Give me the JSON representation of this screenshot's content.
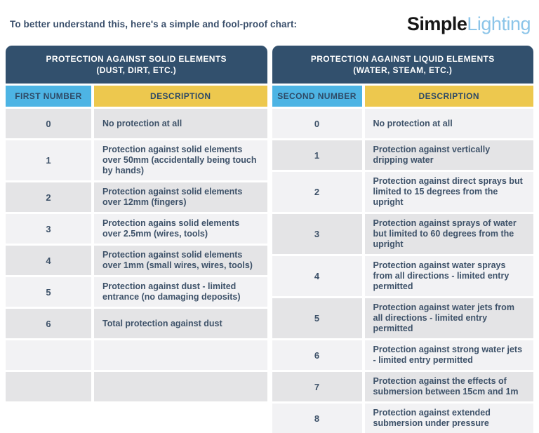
{
  "topbar": {
    "intro_text": "To better understand this, here's a simple and fool-proof chart:",
    "logo": {
      "part1": "Simple",
      "part2": "Lighting"
    }
  },
  "colors": {
    "header_navy": "#32506d",
    "number_column_blue": "#4db4e4",
    "description_column_yellow": "#edc84e",
    "row_gray_dark": "#e4e4e6",
    "row_gray_light": "#f2f2f4",
    "text_navy": "#3e5269",
    "logo_black": "#161616",
    "logo_blue": "#8cc5e9"
  },
  "chart_data": [
    {
      "type": "table",
      "title": "PROTECTION AGAINST SOLID ELEMENTS",
      "subtitle": "(DUST, DIRT, ETC.)",
      "columns": [
        "FIRST NUMBER",
        "DESCRIPTION"
      ],
      "rows": [
        [
          "0",
          "No protection at all"
        ],
        [
          "1",
          "Protection against solid elements over 50mm (accidentally being touch by hands)"
        ],
        [
          "2",
          "Protection against solid elements over 12mm (fingers)"
        ],
        [
          "3",
          "Protection agains solid elements over 2.5mm (wires, tools)"
        ],
        [
          "4",
          "Protection against solid elements over 1mm (small wires, wires, tools)"
        ],
        [
          "5",
          "Protection against dust - limited entrance (no damaging deposits)"
        ],
        [
          "6",
          "Total protection against dust"
        ],
        [
          "",
          ""
        ],
        [
          "",
          ""
        ]
      ]
    },
    {
      "type": "table",
      "title": "PROTECTION AGAINST LIQUID ELEMENTS",
      "subtitle": "(WATER, STEAM, ETC.)",
      "columns": [
        "SECOND NUMBER",
        "DESCRIPTION"
      ],
      "rows": [
        [
          "0",
          "No protection at all"
        ],
        [
          "1",
          "Protection against vertically dripping water"
        ],
        [
          "2",
          "Protection against direct sprays but limited to 15 degrees from the upright"
        ],
        [
          "3",
          "Protection against sprays of water but limited to 60 degrees from the upright"
        ],
        [
          "4",
          "Protection against water sprays from all directions - limited entry permitted"
        ],
        [
          "5",
          "Protection against water jets from all directions - limited entry permitted"
        ],
        [
          "6",
          "Protection against strong water jets - limited entry permitted"
        ],
        [
          "7",
          "Protection against the effects of submersion between 15cm and 1m"
        ],
        [
          "8",
          "Protection against extended submersion under pressure"
        ]
      ]
    }
  ]
}
